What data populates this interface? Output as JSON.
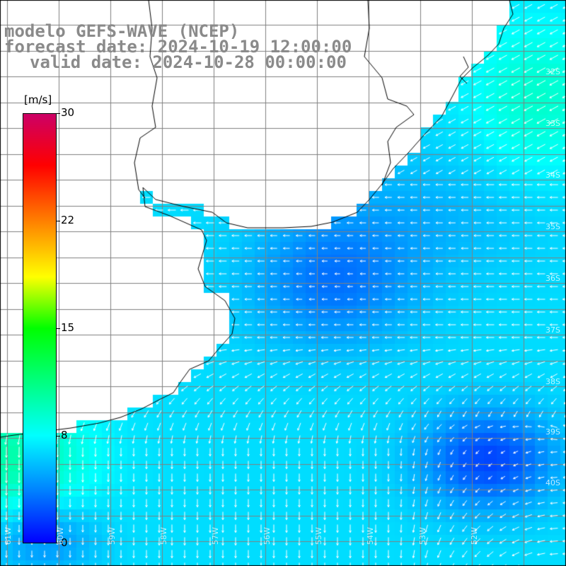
{
  "title": {
    "line1": "modelo GEFS-WAVE (NCEP)",
    "line2": "forecast date: 2024-10-19 12:00:00",
    "line3": "valid date: 2024-10-28 00:00:00"
  },
  "colorbar": {
    "unit": "[m/s]",
    "ticks": [
      "30",
      "22",
      "15",
      "8",
      "0"
    ],
    "tick_values": [
      30,
      22,
      15,
      8,
      0
    ],
    "range": [
      0,
      30
    ],
    "colors": [
      "#0000ff",
      "#0080ff",
      "#00ffff",
      "#00ff00",
      "#ffff00",
      "#ff8000",
      "#ff0000",
      "#cc0066"
    ]
  },
  "map": {
    "variable": "wind speed and direction",
    "land_color": "#ffffff",
    "coastline_color": "#000000",
    "grid_color": "#808080",
    "arrow_color": "#ffffff",
    "lat_labels": [
      "32S",
      "33S",
      "34S",
      "35S",
      "36S",
      "37S",
      "38S",
      "39S",
      "40S"
    ],
    "lon_labels": [
      "61W",
      "60W",
      "59W",
      "58W",
      "57W",
      "56W",
      "55W",
      "54W",
      "53W",
      "52W"
    ]
  }
}
